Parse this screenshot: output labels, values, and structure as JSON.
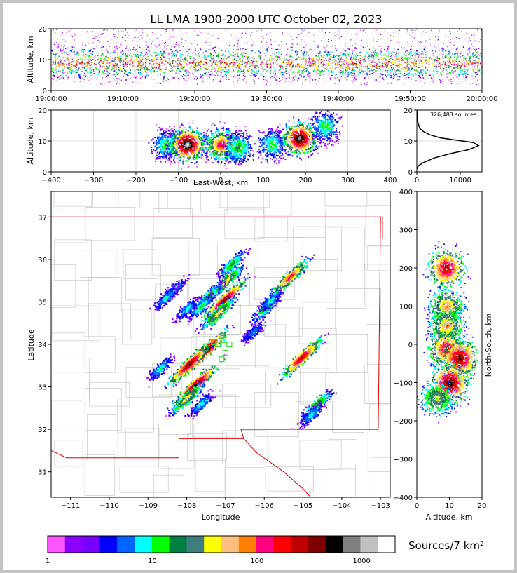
{
  "chart_data": [
    {
      "type": "heatmap",
      "panel": "altitude-time",
      "title": "LL LMA 1900-2000 UTC October 02, 2023",
      "xlabel": "",
      "ylabel": "Altitude, km",
      "x_ticks": [
        "19:00:00",
        "19:10:00",
        "19:20:00",
        "19:30:00",
        "19:40:00",
        "19:50:00",
        "20:00:00"
      ],
      "y_ticks": [
        "0",
        "10",
        "20"
      ],
      "ylim": [
        0,
        20
      ],
      "core_altitude_km": 9,
      "source_altitude_range_km": [
        2,
        20
      ]
    },
    {
      "type": "heatmap",
      "panel": "east-west-altitude",
      "xlabel": "East-West, km",
      "ylabel": "Altitude, km",
      "xlim": [
        -400,
        400
      ],
      "ylim": [
        0,
        20
      ],
      "x_ticks": [
        "-400",
        "-300",
        "-200",
        "-100",
        "0",
        "100",
        "200",
        "300",
        "400"
      ],
      "y_ticks": [
        "0",
        "10",
        "20"
      ],
      "clusters": [
        {
          "x_km": -130,
          "alt_km": 9,
          "intensity": 0.35
        },
        {
          "x_km": -80,
          "alt_km": 9,
          "intensity": 1.0
        },
        {
          "x_km": 0,
          "alt_km": 9,
          "intensity": 0.7
        },
        {
          "x_km": 40,
          "alt_km": 8,
          "intensity": 0.4
        },
        {
          "x_km": 120,
          "alt_km": 9,
          "intensity": 0.35
        },
        {
          "x_km": 185,
          "alt_km": 11,
          "intensity": 0.95
        },
        {
          "x_km": 245,
          "alt_km": 15,
          "intensity": 0.35
        }
      ]
    },
    {
      "type": "line",
      "panel": "altitude-histogram",
      "annotation": "326,483 sources",
      "xlim": [
        0,
        15000
      ],
      "ylim": [
        0,
        20
      ],
      "x_ticks": [
        "0",
        "10000"
      ],
      "y_ticks": [
        "0",
        "10",
        "20"
      ],
      "x": [
        0,
        400,
        1500,
        4000,
        8000,
        12000,
        14200,
        13000,
        9000,
        5500,
        3000,
        1600,
        700,
        250,
        80,
        0
      ],
      "y": [
        1,
        2,
        3,
        4.5,
        6,
        7.2,
        8.5,
        9.5,
        10.3,
        11,
        12,
        13,
        14,
        16,
        18,
        20
      ]
    },
    {
      "type": "heatmap",
      "panel": "plan-view-map",
      "xlabel": "Longitude",
      "ylabel": "Latitude",
      "xlim": [
        -111.5,
        -102.75
      ],
      "ylim": [
        30.4,
        37.6
      ],
      "x_ticks": [
        "-111",
        "-110",
        "-109",
        "-108",
        "-107",
        "-106",
        "-105",
        "-104",
        "-103"
      ],
      "y_ticks": [
        "31",
        "32",
        "33",
        "34",
        "35",
        "36",
        "37"
      ],
      "stations": [
        {
          "lon": -107.1,
          "lat": 34.2
        },
        {
          "lon": -107.05,
          "lat": 34.1
        },
        {
          "lon": -107.2,
          "lat": 34.0
        },
        {
          "lon": -106.9,
          "lat": 34.0
        },
        {
          "lon": -107.0,
          "lat": 33.8
        },
        {
          "lon": -107.1,
          "lat": 33.65
        },
        {
          "lon": -107.3,
          "lat": 34.05
        }
      ],
      "storm_cells": [
        {
          "lon": -106.85,
          "lat": 35.9,
          "intensity": 0.4
        },
        {
          "lon": -107.0,
          "lat": 35.5,
          "intensity": 0.55
        },
        {
          "lon": -107.05,
          "lat": 35.05,
          "intensity": 0.85
        },
        {
          "lon": -107.2,
          "lat": 34.75,
          "intensity": 0.55
        },
        {
          "lon": -107.45,
          "lat": 35.15,
          "intensity": 0.4
        },
        {
          "lon": -107.65,
          "lat": 34.9,
          "intensity": 0.35
        },
        {
          "lon": -108.0,
          "lat": 34.85,
          "intensity": 0.3
        },
        {
          "lon": -108.35,
          "lat": 35.3,
          "intensity": 0.3
        },
        {
          "lon": -108.55,
          "lat": 35.1,
          "intensity": 0.3
        },
        {
          "lon": -107.6,
          "lat": 33.8,
          "intensity": 1.0
        },
        {
          "lon": -107.95,
          "lat": 33.55,
          "intensity": 0.85
        },
        {
          "lon": -107.8,
          "lat": 33.05,
          "intensity": 0.9
        },
        {
          "lon": -108.0,
          "lat": 32.75,
          "intensity": 0.55
        },
        {
          "lon": -107.65,
          "lat": 32.6,
          "intensity": 0.3
        },
        {
          "lon": -108.7,
          "lat": 33.45,
          "intensity": 0.3
        },
        {
          "lon": -106.0,
          "lat": 34.85,
          "intensity": 0.4
        },
        {
          "lon": -105.85,
          "lat": 35.05,
          "intensity": 0.3
        },
        {
          "lon": -106.3,
          "lat": 34.3,
          "intensity": 0.25
        },
        {
          "lon": -105.35,
          "lat": 35.6,
          "intensity": 0.7
        },
        {
          "lon": -105.05,
          "lat": 33.7,
          "intensity": 0.8
        },
        {
          "lon": -104.65,
          "lat": 32.6,
          "intensity": 0.45
        },
        {
          "lon": -104.8,
          "lat": 32.35,
          "intensity": 0.3
        }
      ]
    },
    {
      "type": "heatmap",
      "panel": "altitude-north-south",
      "xlabel": "Altitude, km",
      "ylabel": "North-South, km",
      "xlim": [
        0,
        20
      ],
      "ylim": [
        -400,
        400
      ],
      "x_ticks": [
        "0",
        "10",
        "20"
      ],
      "y_ticks": [
        "-400",
        "-300",
        "-200",
        "-100",
        "0",
        "100",
        "200",
        "300",
        "400"
      ],
      "clusters": [
        {
          "ns_km": 200,
          "alt_km": 9,
          "intensity": 0.8
        },
        {
          "ns_km": 100,
          "alt_km": 9,
          "intensity": 0.6
        },
        {
          "ns_km": 50,
          "alt_km": 9,
          "intensity": 0.6
        },
        {
          "ns_km": -10,
          "alt_km": 9,
          "intensity": 0.75
        },
        {
          "ns_km": -35,
          "alt_km": 13,
          "intensity": 0.85
        },
        {
          "ns_km": -100,
          "alt_km": 10,
          "intensity": 0.9
        },
        {
          "ns_km": -140,
          "alt_km": 6,
          "intensity": 0.5
        }
      ]
    },
    {
      "type": "colorbar",
      "panel": "colorbar",
      "label": "Sources/7 km²",
      "scale": "log",
      "tick_labels": [
        "1",
        "10",
        "100",
        "1000"
      ],
      "colors": [
        "#ff55ff",
        "#8c00ff",
        "#7700ff",
        "#0000ff",
        "#0066ff",
        "#00ffff",
        "#00ff00",
        "#008040",
        "#3d7f7f",
        "#ffff00",
        "#ffbf80",
        "#ff8000",
        "#ff0080",
        "#ff0000",
        "#c00000",
        "#800000",
        "#000000",
        "#808080",
        "#c0c0c0",
        "#ffffff"
      ]
    }
  ]
}
